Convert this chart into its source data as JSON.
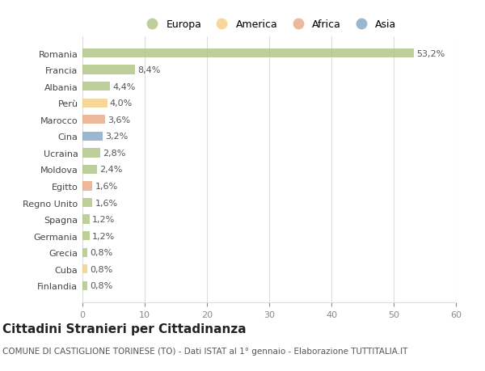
{
  "countries": [
    "Romania",
    "Francia",
    "Albania",
    "Perù",
    "Marocco",
    "Cina",
    "Ucraina",
    "Moldova",
    "Egitto",
    "Regno Unito",
    "Spagna",
    "Germania",
    "Grecia",
    "Cuba",
    "Finlandia"
  ],
  "values": [
    53.2,
    8.4,
    4.4,
    4.0,
    3.6,
    3.2,
    2.8,
    2.4,
    1.6,
    1.6,
    1.2,
    1.2,
    0.8,
    0.8,
    0.8
  ],
  "labels": [
    "53,2%",
    "8,4%",
    "4,4%",
    "4,0%",
    "3,6%",
    "3,2%",
    "2,8%",
    "2,4%",
    "1,6%",
    "1,6%",
    "1,2%",
    "1,2%",
    "0,8%",
    "0,8%",
    "0,8%"
  ],
  "colors": [
    "#a8c07a",
    "#a8c07a",
    "#a8c07a",
    "#f5c97a",
    "#e8a07a",
    "#7a9fc0",
    "#a8c07a",
    "#a8c07a",
    "#e8a07a",
    "#a8c07a",
    "#a8c07a",
    "#a8c07a",
    "#a8c07a",
    "#f5c97a",
    "#a8c07a"
  ],
  "legend_labels": [
    "Europa",
    "America",
    "Africa",
    "Asia"
  ],
  "legend_colors": [
    "#a8c07a",
    "#f5c97a",
    "#e8a07a",
    "#7a9fc0"
  ],
  "title": "Cittadini Stranieri per Cittadinanza",
  "subtitle": "COMUNE DI CASTIGLIONE TORINESE (TO) - Dati ISTAT al 1° gennaio - Elaborazione TUTTITALIA.IT",
  "xlim": [
    0,
    60
  ],
  "xticks": [
    0,
    10,
    20,
    30,
    40,
    50,
    60
  ],
  "background_color": "#ffffff",
  "bar_alpha": 0.75,
  "grid_color": "#dddddd",
  "title_fontsize": 11,
  "subtitle_fontsize": 7.5,
  "label_fontsize": 8,
  "tick_fontsize": 8,
  "legend_fontsize": 9
}
